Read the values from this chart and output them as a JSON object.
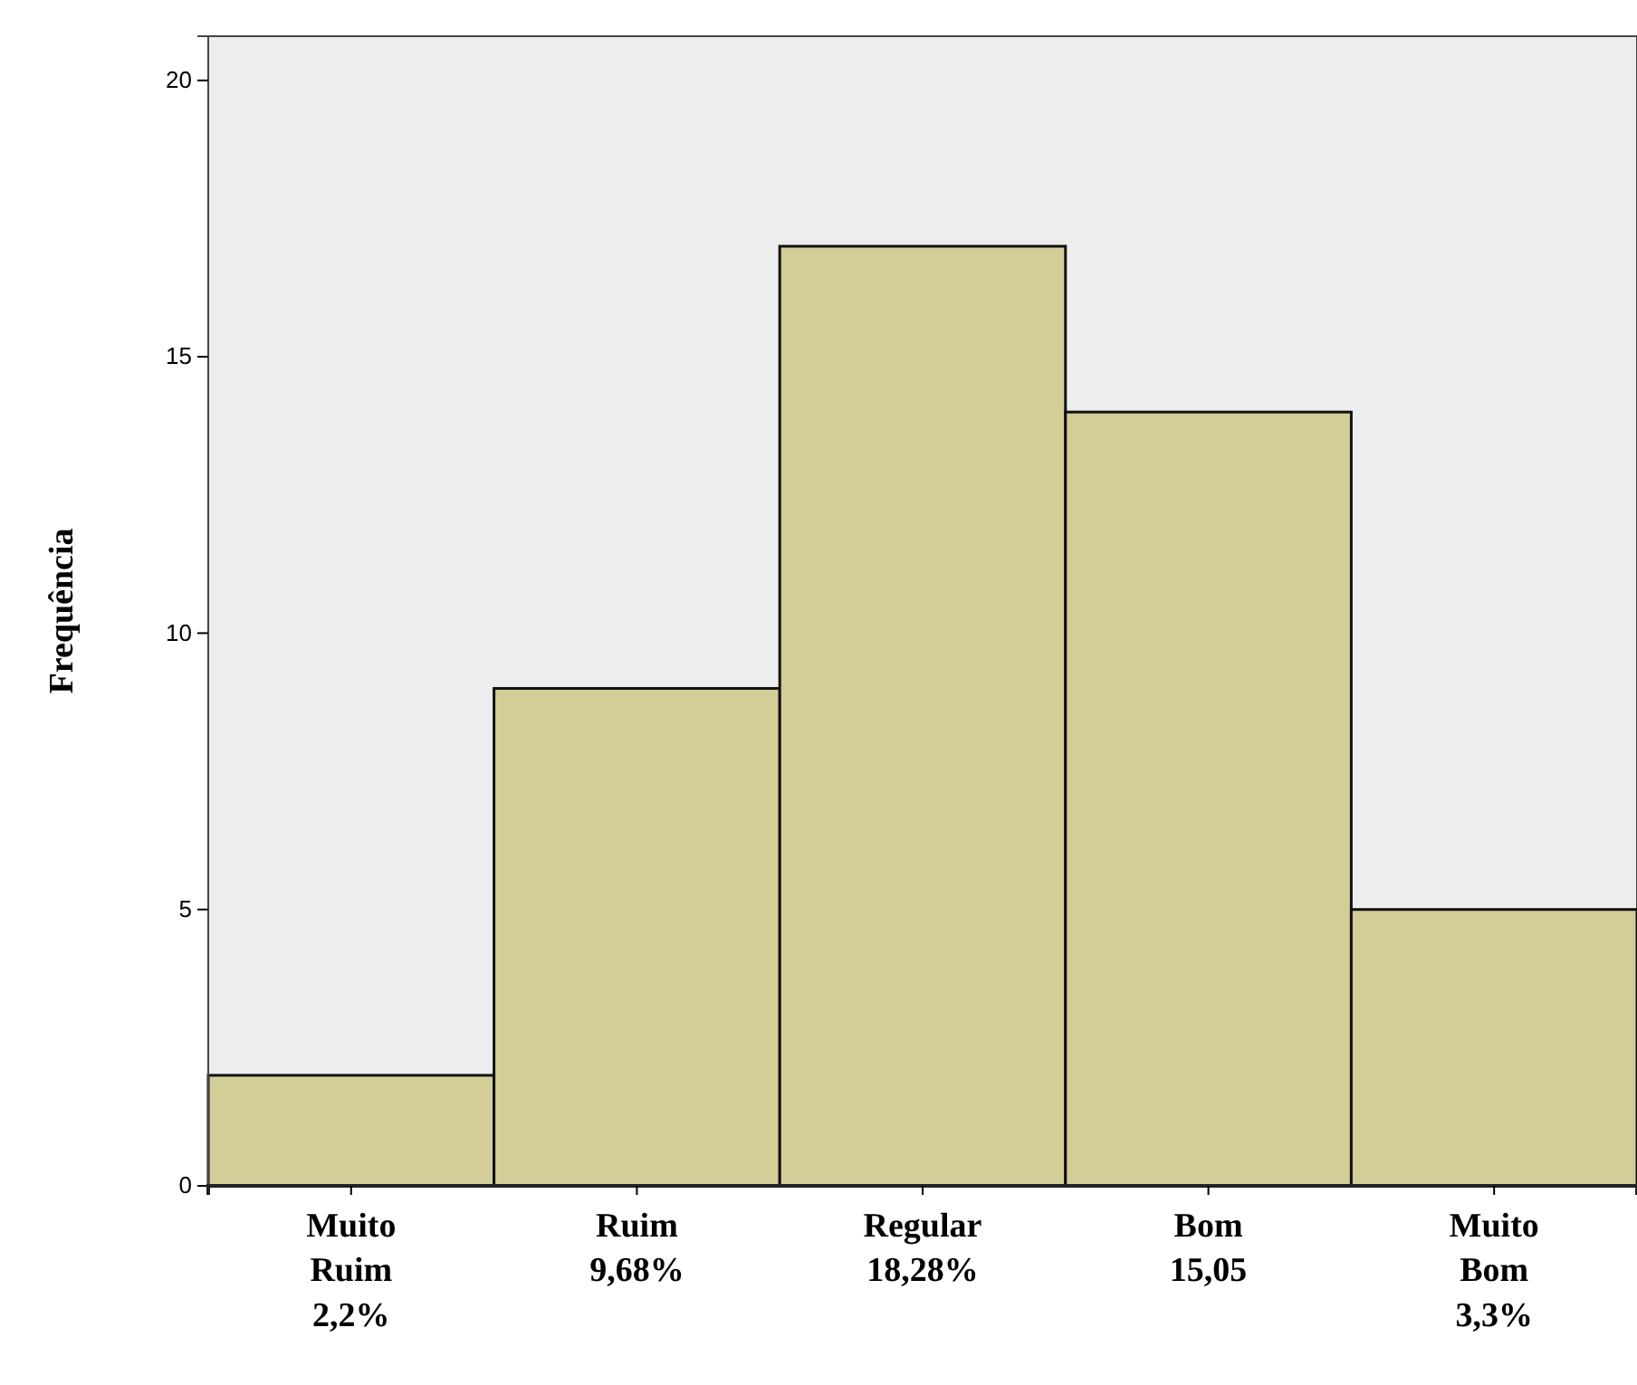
{
  "chart_data": {
    "type": "bar",
    "ylabel": "Frequência",
    "categories": [
      "Muito\nRuim\n2,2%",
      "Ruim\n9,68%",
      "Regular\n18,28%",
      "Bom\n15,05",
      "Muito\nBom\n3,3%"
    ],
    "values": [
      2,
      9,
      17,
      14,
      5
    ],
    "color": "#d3cd98",
    "ylim": [
      0,
      20.8
    ],
    "yticks": [
      0,
      5,
      10,
      15,
      20
    ],
    "grid": false
  }
}
